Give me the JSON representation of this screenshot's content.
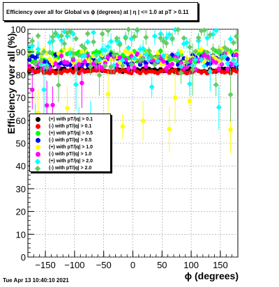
{
  "title": "Efficiency over all for Global vs ϕ (degrees) at | η | <= 1.0 at pT > 0.11",
  "footer": {
    "timestamp": "Tue Apr 13 10:40:10 2021"
  },
  "chart_data": {
    "type": "scatter",
    "xlabel": "ϕ (degrees)",
    "ylabel": "Efficiency over all (%)",
    "xlim": [
      -180,
      180
    ],
    "ylim": [
      0,
      100
    ],
    "x_ticks": [
      "−150",
      "−100",
      "−50",
      "0",
      "50",
      "100",
      "150"
    ],
    "x_tick_values": [
      -150,
      -100,
      -50,
      0,
      50,
      100,
      150
    ],
    "y_ticks": [
      "0",
      "10",
      "20",
      "30",
      "40",
      "50",
      "60",
      "70",
      "80",
      "90",
      "100"
    ],
    "y_tick_values": [
      0,
      10,
      20,
      30,
      40,
      50,
      60,
      70,
      80,
      90,
      100
    ],
    "grid": true,
    "legend_position": "middle-left",
    "series": [
      {
        "name": "(+) with pT/|q| > 0.1",
        "color": "#000000",
        "marker": "circle",
        "center": 82,
        "spread": 0.8
      },
      {
        "name": "(-) with pT/|q| > 0.1",
        "color": "#ff0000",
        "marker": "circle",
        "center": 81.5,
        "spread": 0.8
      },
      {
        "name": "(+) with pT/|q| > 0.5",
        "color": "#00ff00",
        "marker": "circle",
        "center": 88,
        "spread": 2.5
      },
      {
        "name": "(-) with pT/|q| > 0.5",
        "color": "#0000ff",
        "marker": "circle",
        "center": 86.5,
        "spread": 2.5
      },
      {
        "name": "(+) with pT/|q| > 1.0",
        "color": "#ffff00",
        "marker": "circle",
        "center": 88,
        "spread": 3.5
      },
      {
        "name": "(-) with pT/|q| > 1.0",
        "color": "#ff00ff",
        "marker": "circle",
        "center": 86,
        "spread": 3.5
      },
      {
        "name": "(+) with pT/|q| > 2.0",
        "color": "#00ffff",
        "marker": "diamond",
        "center": 90,
        "spread": 7
      },
      {
        "name": "(-) with pT/|q| > 2.0",
        "color": "#66cc66",
        "marker": "diamond",
        "center": 90,
        "spread": 7
      }
    ]
  }
}
